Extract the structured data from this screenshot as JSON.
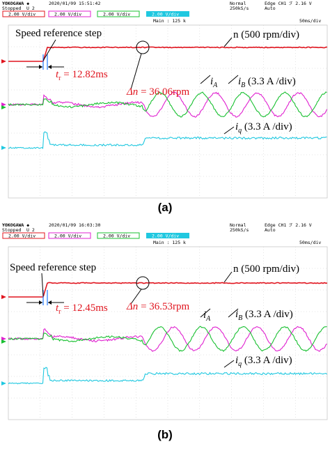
{
  "panels": [
    {
      "id": "a",
      "caption": "(a)",
      "header": {
        "brand": "YOKOGAWA ◆",
        "datetime": "2020/01/09  15:51:42",
        "status": "Stopped",
        "cursor_marks": "U          2",
        "mode": "Normal",
        "rate": "250kS/s",
        "trigger": "Edge CH1 ℱ 2.16 V",
        "trigger_mode": "Auto",
        "ch1": "2.00 V/div",
        "ch2": "2.00 V/div",
        "ch3": "2.00 V/div",
        "ch4": "2.00 V/div",
        "main": "Main : 125 k",
        "timebase": "50ms/div"
      },
      "annotations": {
        "step_label": "Speed reference step",
        "speed_label": "n (500 rpm/div)",
        "rise_time_var": "t",
        "rise_time_sub": "r",
        "rise_time_value": " = 12.82ms",
        "delta_n_var": "Δn",
        "delta_n_value": " = 36.06rpm",
        "ia_var": "i",
        "ia_sub": "A",
        "ib_var": "i",
        "ib_sub": "B",
        "ib_scale": " (3.3 A /div)",
        "iq_var": "i",
        "iq_sub": "q",
        "iq_scale": " (3.3 A /div)"
      }
    },
    {
      "id": "b",
      "caption": "(b)",
      "header": {
        "brand": "YOKOGAWA ◆",
        "datetime": "2020/01/09  16:03:30",
        "status": "Stopped",
        "cursor_marks": "U          2",
        "mode": "Normal",
        "rate": "250kS/s",
        "trigger": "Edge CH1 ℱ 2.16 V",
        "trigger_mode": "Auto",
        "ch1": "2.00 V/div",
        "ch2": "2.00 V/div",
        "ch3": "2.00 V/div",
        "ch4": "2.00 V/div",
        "main": "Main : 125 k",
        "timebase": "50ms/div"
      },
      "annotations": {
        "step_label": "Speed reference step",
        "speed_label": "n (500 rpm/div)",
        "rise_time_var": "t",
        "rise_time_sub": "r",
        "rise_time_value": " = 12.45ms",
        "delta_n_var": "Δn",
        "delta_n_value": " = 36.53rpm",
        "ia_var": "i",
        "ia_sub": "A",
        "ib_var": "i",
        "ib_sub": "B",
        "ib_scale": " (3.3 A /div)",
        "iq_var": "i",
        "iq_sub": "q",
        "iq_scale": " (3.3 A /div)"
      }
    }
  ],
  "chart_data": [
    {
      "type": "line",
      "title": "",
      "xlabel": "",
      "ylabel": "",
      "x_scale": "50ms/div",
      "rise_time_ms": 12.82,
      "speed_overshoot_rpm": 36.06,
      "series": [
        {
          "name": "n (500 rpm/div)",
          "color": "#e0141e"
        },
        {
          "name": "iA",
          "color": "#e020d0"
        },
        {
          "name": "iB (3.3 A /div)",
          "color": "#18c030"
        },
        {
          "name": "iq (3.3 A /div)",
          "color": "#20c8e0"
        }
      ],
      "grid": true
    },
    {
      "type": "line",
      "title": "",
      "xlabel": "",
      "ylabel": "",
      "x_scale": "50ms/div",
      "rise_time_ms": 12.45,
      "speed_overshoot_rpm": 36.53,
      "series": [
        {
          "name": "n (500 rpm/div)",
          "color": "#e0141e"
        },
        {
          "name": "iA",
          "color": "#e020d0"
        },
        {
          "name": "iB (3.3 A /div)",
          "color": "#18c030"
        },
        {
          "name": "iq (3.3 A /div)",
          "color": "#20c8e0"
        }
      ],
      "grid": true
    }
  ],
  "colors": {
    "ch1": "#e0141e",
    "ch2": "#e020d0",
    "ch3": "#18c030",
    "ch4": "#20c8e0",
    "grid": "#c8c8c8"
  }
}
